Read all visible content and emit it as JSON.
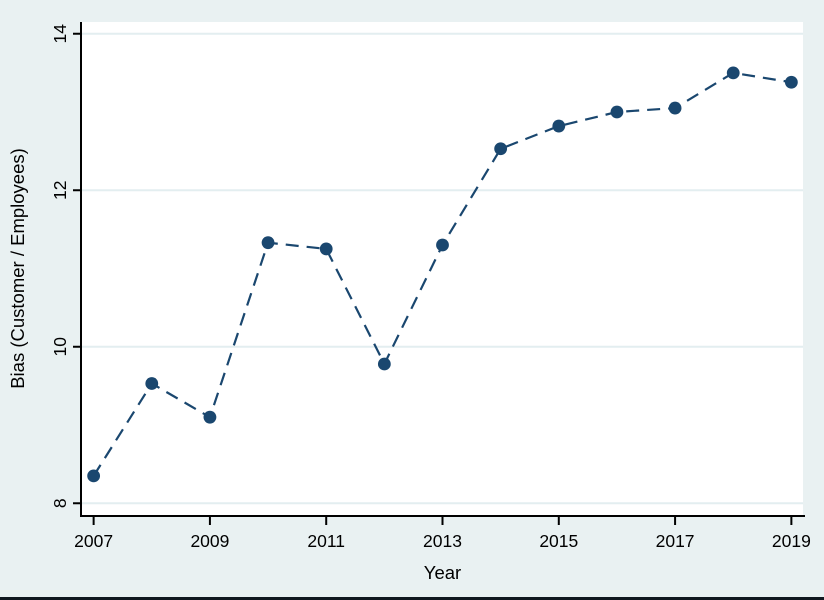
{
  "figure": {
    "x_axis_title": "Year",
    "y_axis_title": "Bias (Customer / Employees)"
  },
  "colors": {
    "background": "#e9f1f2",
    "plot_background": "#ffffff",
    "grid": "#e3eef0",
    "axis": "#000000",
    "tick_label": "#000000",
    "series": "#1a476f",
    "bottom_border": "#10181f"
  },
  "chart_data": {
    "type": "line",
    "title": "",
    "xlabel": "Year",
    "ylabel": "Bias (Customer / Employees)",
    "x": [
      2007,
      2008,
      2009,
      2010,
      2011,
      2012,
      2013,
      2014,
      2015,
      2016,
      2017,
      2018,
      2019
    ],
    "series": [
      {
        "name": "Bias (Customer / Employees)",
        "values": [
          8.35,
          9.53,
          9.1,
          11.33,
          11.25,
          9.78,
          11.3,
          12.53,
          12.82,
          13.0,
          13.05,
          13.5,
          13.38
        ],
        "line_style": "dashed",
        "marker": "circle"
      }
    ],
    "xticks": [
      2007,
      2009,
      2011,
      2013,
      2015,
      2017,
      2019
    ],
    "yticks": [
      8,
      10,
      12,
      14
    ],
    "xlim": [
      2006.8,
      2019.2
    ],
    "ylim": [
      7.85,
      14.15
    ],
    "grid": "horizontal-at-yticks",
    "legend_position": "none"
  }
}
